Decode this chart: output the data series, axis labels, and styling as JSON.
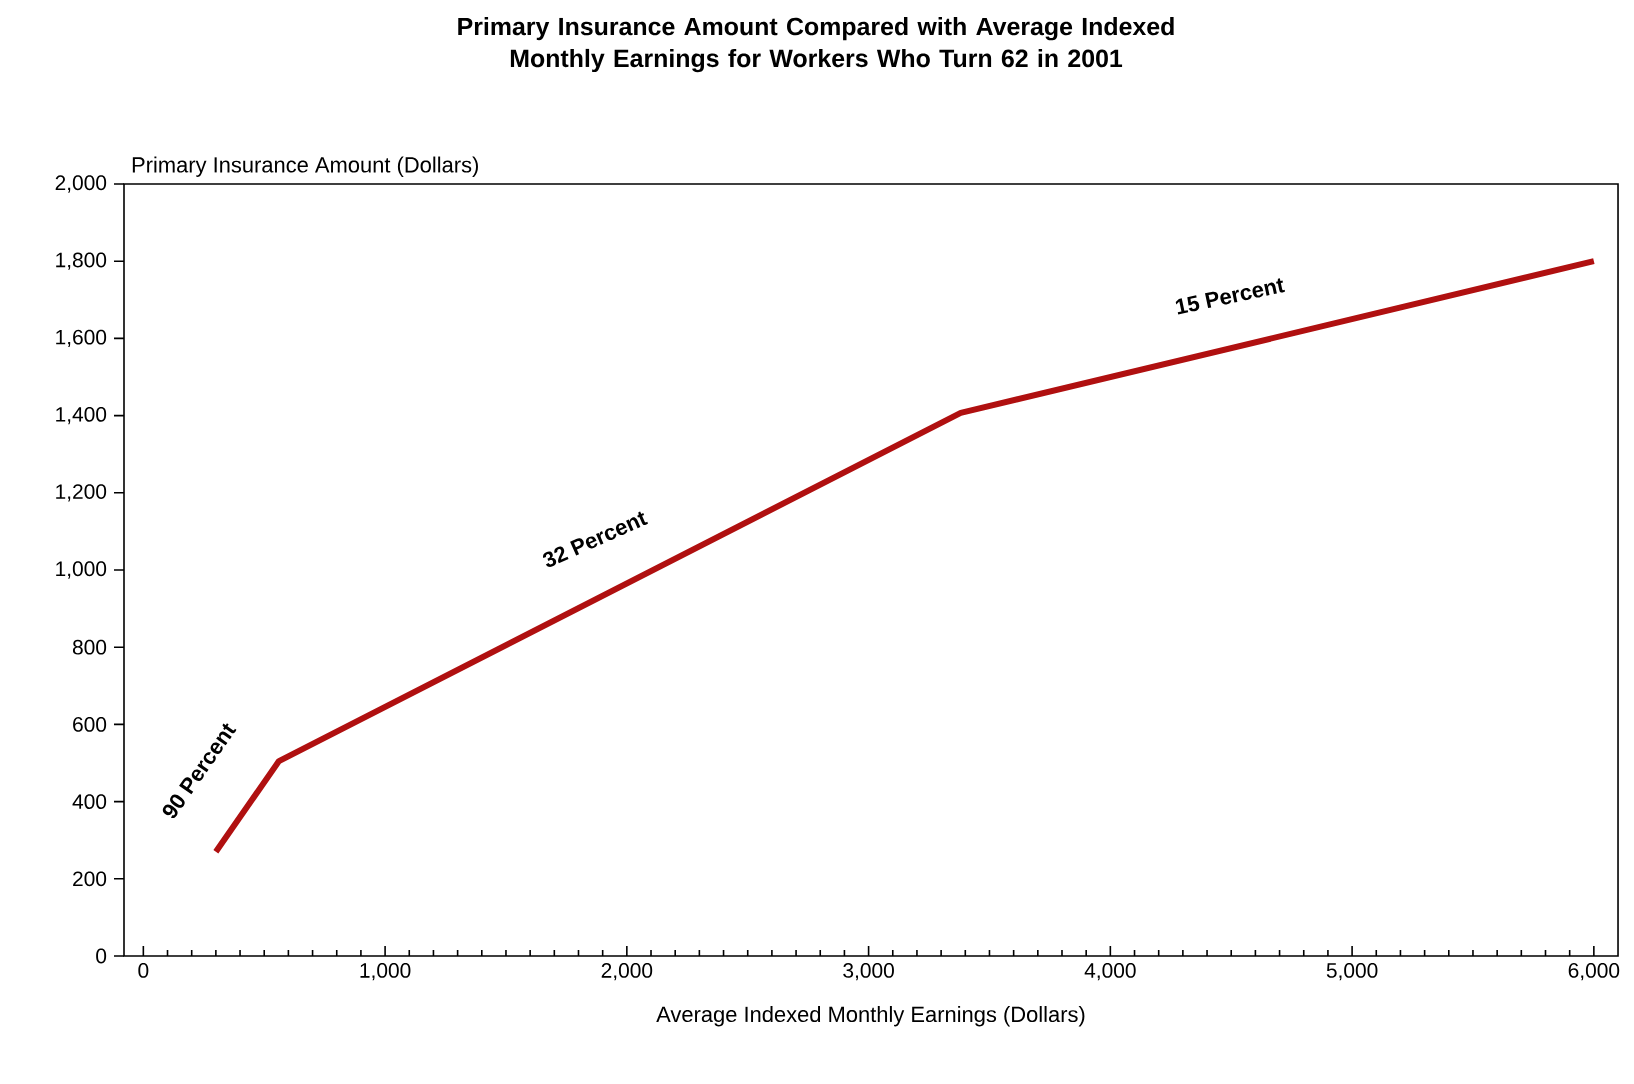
{
  "chart_data": {
    "type": "line",
    "title": "Primary Insurance Amount Compared with Average Indexed\nMonthly Earnings for Workers Who Turn 62 in 2001",
    "xlabel": "Average Indexed Monthly Earnings (Dollars)",
    "ylabel": "Primary Insurance Amount (Dollars)",
    "x": [
      300,
      561,
      3381,
      6000
    ],
    "series": [
      {
        "color": "#b01010",
        "values": [
          270,
          505,
          1407,
          1800
        ]
      }
    ],
    "xlim": [
      -80,
      6100
    ],
    "ylim": [
      0,
      2000
    ],
    "xticks": [
      {
        "value": 0,
        "label": "0"
      },
      {
        "value": 1000,
        "label": "1,000"
      },
      {
        "value": 2000,
        "label": "2,000"
      },
      {
        "value": 3000,
        "label": "3,000"
      },
      {
        "value": 4000,
        "label": "4,000"
      },
      {
        "value": 5000,
        "label": "5,000"
      },
      {
        "value": 6000,
        "label": "6,000"
      }
    ],
    "yticks": [
      {
        "value": 0,
        "label": "0"
      },
      {
        "value": 200,
        "label": "200"
      },
      {
        "value": 400,
        "label": "400"
      },
      {
        "value": 600,
        "label": "600"
      },
      {
        "value": 800,
        "label": "800"
      },
      {
        "value": 1000,
        "label": "1,000"
      },
      {
        "value": 1200,
        "label": "1,200"
      },
      {
        "value": 1400,
        "label": "1,400"
      },
      {
        "value": 1600,
        "label": "1,600"
      },
      {
        "value": 1800,
        "label": "1,800"
      },
      {
        "value": 2000,
        "label": "2,000"
      }
    ],
    "annotations": [
      "90 Percent",
      "32 Percent",
      "15 Percent"
    ],
    "grid": false,
    "marker": "none",
    "line_style": "solid"
  }
}
